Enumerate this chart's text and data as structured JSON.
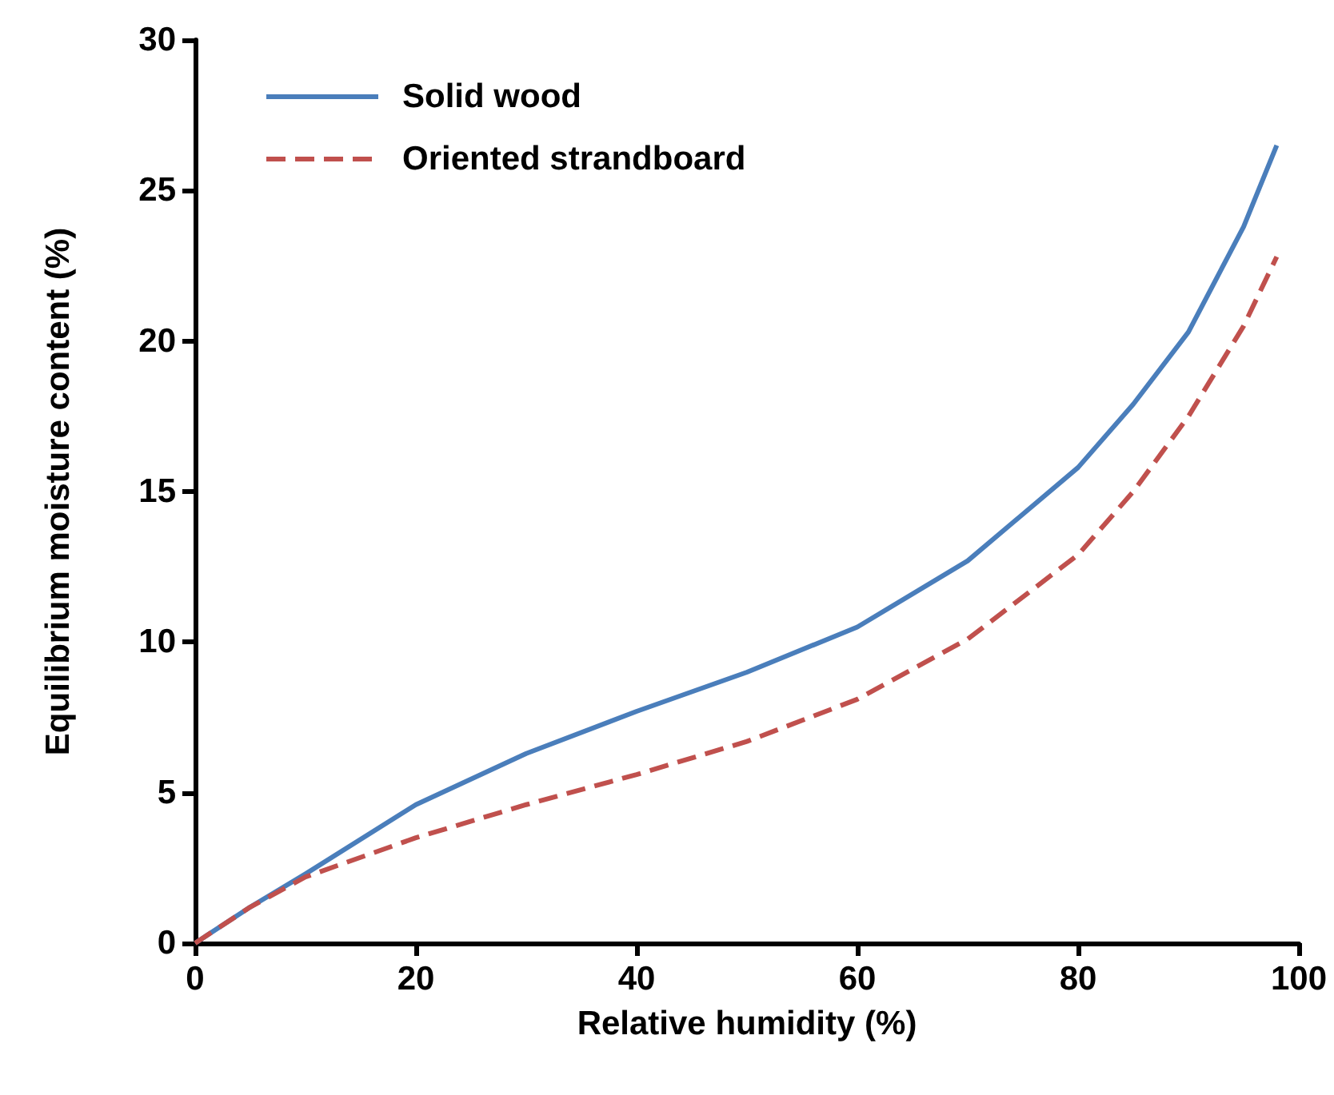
{
  "chart_data": {
    "type": "line",
    "xlabel": "Relative humidity (%)",
    "ylabel": "Equilibrium moisture content (%)",
    "x": [
      0,
      5,
      10,
      20,
      30,
      40,
      50,
      60,
      70,
      80,
      85,
      90,
      95,
      98
    ],
    "series": [
      {
        "name": "Solid wood",
        "color": "#4a7ebb",
        "line_style": "solid",
        "values": [
          0,
          1.2,
          2.3,
          4.6,
          6.3,
          7.7,
          9.0,
          10.5,
          12.7,
          15.8,
          17.9,
          20.3,
          23.8,
          26.5
        ]
      },
      {
        "name": "Oriented strandboard",
        "color": "#c0504d",
        "line_style": "dashed",
        "values": [
          0,
          1.2,
          2.2,
          3.5,
          4.6,
          5.6,
          6.7,
          8.1,
          10.1,
          12.9,
          15.0,
          17.5,
          20.5,
          22.8
        ]
      }
    ],
    "xlim": [
      0,
      100
    ],
    "xticks": [
      0,
      20,
      40,
      60,
      80,
      100
    ],
    "ylim": [
      0,
      30
    ],
    "yticks": [
      0,
      5,
      10,
      15,
      20,
      25,
      30
    ],
    "grid": false,
    "legend": "top left",
    "marker": "none"
  }
}
